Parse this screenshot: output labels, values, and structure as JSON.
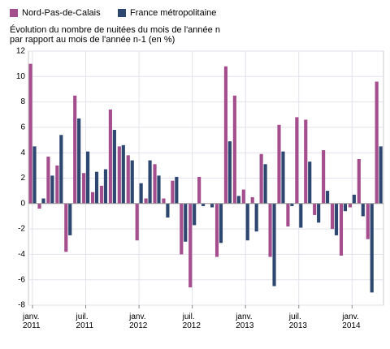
{
  "chart_data": {
    "type": "bar",
    "title": "Évolution du nombre de nuitées du mois de l'année n\npar rapport au mois de l'année n-1 (en %)",
    "categories": [
      "janv.\n2011",
      null,
      null,
      null,
      null,
      null,
      "juil.\n2011",
      null,
      null,
      null,
      null,
      null,
      "janv.\n2012",
      null,
      null,
      null,
      null,
      null,
      "juil.\n2012",
      null,
      null,
      null,
      null,
      null,
      "janv.\n2013",
      null,
      null,
      null,
      null,
      null,
      "juil.\n2013",
      null,
      null,
      null,
      null,
      null,
      "janv.\n2014",
      null,
      null,
      null
    ],
    "series": [
      {
        "name": "Nord-Pas-de-Calais",
        "color": "#a54e8e",
        "values": [
          11,
          -0.4,
          3.7,
          3.0,
          -3.8,
          8.5,
          2.4,
          0.9,
          1.4,
          7.4,
          4.5,
          3.8,
          -2.9,
          0.4,
          3.1,
          0.4,
          1.8,
          -4.0,
          -6.6,
          2.1,
          0,
          -4.2,
          10.8,
          8.5,
          1.1,
          0.5,
          3.9,
          -4.2,
          6.2,
          -1.8,
          6.8,
          6.6,
          -0.9,
          4.2,
          -2.0,
          -4.1,
          -0.3,
          3.5,
          -2.8,
          9.6
        ]
      },
      {
        "name": "France métropolitaine",
        "color": "#2d4770",
        "values": [
          4.5,
          0.4,
          2.2,
          5.4,
          -2.5,
          6.7,
          4.1,
          2.5,
          2.7,
          5.8,
          4.6,
          3.4,
          1.6,
          3.4,
          2.2,
          -1.1,
          2.1,
          -3.0,
          -1.7,
          -0.2,
          -0.3,
          -3.1,
          4.9,
          0.6,
          -2.9,
          -2.2,
          3.1,
          -6.5,
          4.1,
          -0.2,
          -1.9,
          3.3,
          -1.5,
          1.0,
          -2.5,
          -0.6,
          0.7,
          -1.0,
          -7.0,
          4.5
        ]
      }
    ],
    "ylim": [
      -8,
      12
    ],
    "yticks": [
      -8,
      -6,
      -4,
      -2,
      0,
      2,
      4,
      6,
      8,
      10,
      12
    ],
    "grid": true
  }
}
